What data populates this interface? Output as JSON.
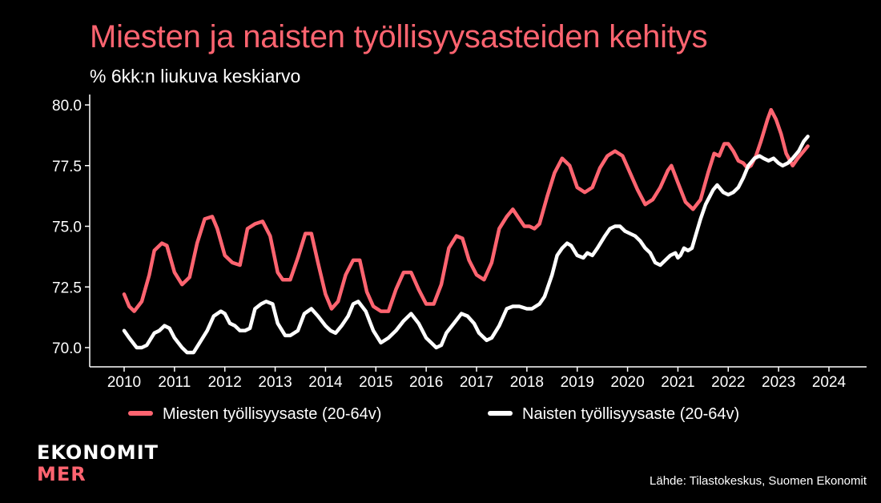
{
  "title": "Miesten ja naisten työllisyysasteiden kehitys",
  "subtitle": "% 6kk:n liukuva keskiarvo",
  "logo": {
    "line1": "EKONOMIT",
    "line2": "MER"
  },
  "source": "Lähde: Tilastokeskus, Suomen Ekonomit",
  "colors": {
    "background": "#000000",
    "men": "#ff6470",
    "women": "#ffffff",
    "title": "#ff6470"
  },
  "chart_data": {
    "type": "line",
    "xlabel": "",
    "ylabel": "",
    "xlim": [
      2009.75,
      2024.75
    ],
    "ylim": [
      69.3,
      80.3
    ],
    "x_ticks": [
      "2010",
      "2011",
      "2012",
      "2013",
      "2014",
      "2015",
      "2016",
      "2017",
      "2018",
      "2019",
      "2020",
      "2021",
      "2022",
      "2023",
      "2024"
    ],
    "y_ticks": [
      "70.0",
      "72.5",
      "75.0",
      "77.5",
      "80.0"
    ],
    "grid": false,
    "legend": "bottom",
    "series": [
      {
        "name": "Miesten työllisyysaste (20-64v)",
        "color": "#ff6470",
        "points": [
          [
            2010.0,
            72.2
          ],
          [
            2010.1,
            71.7
          ],
          [
            2010.2,
            71.5
          ],
          [
            2010.35,
            71.9
          ],
          [
            2010.5,
            73.0
          ],
          [
            2010.6,
            74.0
          ],
          [
            2010.75,
            74.3
          ],
          [
            2010.85,
            74.2
          ],
          [
            2011.0,
            73.1
          ],
          [
            2011.15,
            72.6
          ],
          [
            2011.3,
            72.9
          ],
          [
            2011.45,
            74.3
          ],
          [
            2011.6,
            75.3
          ],
          [
            2011.75,
            75.4
          ],
          [
            2011.85,
            74.9
          ],
          [
            2012.0,
            73.8
          ],
          [
            2012.15,
            73.5
          ],
          [
            2012.3,
            73.4
          ],
          [
            2012.45,
            74.9
          ],
          [
            2012.6,
            75.1
          ],
          [
            2012.75,
            75.2
          ],
          [
            2012.9,
            74.6
          ],
          [
            2013.05,
            73.1
          ],
          [
            2013.15,
            72.8
          ],
          [
            2013.3,
            72.8
          ],
          [
            2013.45,
            73.7
          ],
          [
            2013.6,
            74.7
          ],
          [
            2013.72,
            74.7
          ],
          [
            2013.85,
            73.5
          ],
          [
            2014.0,
            72.2
          ],
          [
            2014.12,
            71.6
          ],
          [
            2014.25,
            71.9
          ],
          [
            2014.4,
            73.0
          ],
          [
            2014.55,
            73.6
          ],
          [
            2014.68,
            73.6
          ],
          [
            2014.82,
            72.3
          ],
          [
            2014.95,
            71.7
          ],
          [
            2015.1,
            71.5
          ],
          [
            2015.25,
            71.5
          ],
          [
            2015.4,
            72.4
          ],
          [
            2015.55,
            73.1
          ],
          [
            2015.7,
            73.1
          ],
          [
            2015.85,
            72.4
          ],
          [
            2016.0,
            71.8
          ],
          [
            2016.15,
            71.8
          ],
          [
            2016.3,
            72.6
          ],
          [
            2016.45,
            74.1
          ],
          [
            2016.6,
            74.6
          ],
          [
            2016.72,
            74.5
          ],
          [
            2016.85,
            73.6
          ],
          [
            2017.0,
            73.0
          ],
          [
            2017.15,
            72.8
          ],
          [
            2017.3,
            73.5
          ],
          [
            2017.45,
            74.9
          ],
          [
            2017.6,
            75.4
          ],
          [
            2017.72,
            75.7
          ],
          [
            2017.85,
            75.3
          ],
          [
            2017.95,
            75.0
          ],
          [
            2018.05,
            75.0
          ],
          [
            2018.15,
            74.9
          ],
          [
            2018.25,
            75.1
          ],
          [
            2018.4,
            76.2
          ],
          [
            2018.55,
            77.2
          ],
          [
            2018.7,
            77.8
          ],
          [
            2018.85,
            77.5
          ],
          [
            2019.0,
            76.6
          ],
          [
            2019.15,
            76.4
          ],
          [
            2019.3,
            76.6
          ],
          [
            2019.45,
            77.4
          ],
          [
            2019.6,
            77.9
          ],
          [
            2019.75,
            78.1
          ],
          [
            2019.9,
            77.9
          ],
          [
            2020.05,
            77.2
          ],
          [
            2020.2,
            76.5
          ],
          [
            2020.35,
            75.9
          ],
          [
            2020.5,
            76.1
          ],
          [
            2020.65,
            76.6
          ],
          [
            2020.8,
            77.3
          ],
          [
            2020.87,
            77.5
          ],
          [
            2021.0,
            76.8
          ],
          [
            2021.15,
            76.0
          ],
          [
            2021.3,
            75.7
          ],
          [
            2021.45,
            76.1
          ],
          [
            2021.6,
            77.2
          ],
          [
            2021.72,
            78.0
          ],
          [
            2021.82,
            77.9
          ],
          [
            2021.92,
            78.4
          ],
          [
            2022.0,
            78.4
          ],
          [
            2022.1,
            78.1
          ],
          [
            2022.2,
            77.7
          ],
          [
            2022.3,
            77.6
          ],
          [
            2022.38,
            77.4
          ],
          [
            2022.45,
            77.5
          ],
          [
            2022.55,
            77.9
          ],
          [
            2022.65,
            78.5
          ],
          [
            2022.78,
            79.4
          ],
          [
            2022.85,
            79.8
          ],
          [
            2022.95,
            79.4
          ],
          [
            2023.05,
            78.8
          ],
          [
            2023.15,
            78.0
          ],
          [
            2023.28,
            77.5
          ],
          [
            2023.38,
            77.8
          ],
          [
            2023.5,
            78.1
          ],
          [
            2023.58,
            78.3
          ]
        ]
      },
      {
        "name": "Naisten työllisyysaste (20-64v)",
        "color": "#ffffff",
        "points": [
          [
            2010.0,
            70.7
          ],
          [
            2010.1,
            70.4
          ],
          [
            2010.25,
            70.0
          ],
          [
            2010.35,
            70.0
          ],
          [
            2010.45,
            70.1
          ],
          [
            2010.6,
            70.6
          ],
          [
            2010.7,
            70.7
          ],
          [
            2010.8,
            70.9
          ],
          [
            2010.9,
            70.8
          ],
          [
            2011.0,
            70.4
          ],
          [
            2011.15,
            70.0
          ],
          [
            2011.25,
            69.8
          ],
          [
            2011.38,
            69.8
          ],
          [
            2011.5,
            70.2
          ],
          [
            2011.65,
            70.7
          ],
          [
            2011.78,
            71.3
          ],
          [
            2011.92,
            71.5
          ],
          [
            2012.0,
            71.4
          ],
          [
            2012.1,
            71.0
          ],
          [
            2012.2,
            70.9
          ],
          [
            2012.3,
            70.7
          ],
          [
            2012.4,
            70.7
          ],
          [
            2012.5,
            70.8
          ],
          [
            2012.6,
            71.6
          ],
          [
            2012.72,
            71.8
          ],
          [
            2012.82,
            71.9
          ],
          [
            2012.95,
            71.8
          ],
          [
            2013.05,
            71.0
          ],
          [
            2013.2,
            70.5
          ],
          [
            2013.3,
            70.5
          ],
          [
            2013.45,
            70.7
          ],
          [
            2013.58,
            71.4
          ],
          [
            2013.72,
            71.6
          ],
          [
            2013.85,
            71.3
          ],
          [
            2014.0,
            70.9
          ],
          [
            2014.1,
            70.7
          ],
          [
            2014.2,
            70.6
          ],
          [
            2014.32,
            70.9
          ],
          [
            2014.45,
            71.3
          ],
          [
            2014.55,
            71.8
          ],
          [
            2014.65,
            71.9
          ],
          [
            2014.8,
            71.5
          ],
          [
            2014.95,
            70.7
          ],
          [
            2015.1,
            70.2
          ],
          [
            2015.25,
            70.4
          ],
          [
            2015.4,
            70.7
          ],
          [
            2015.55,
            71.1
          ],
          [
            2015.7,
            71.4
          ],
          [
            2015.85,
            71.0
          ],
          [
            2016.0,
            70.4
          ],
          [
            2016.1,
            70.2
          ],
          [
            2016.2,
            70.0
          ],
          [
            2016.3,
            70.1
          ],
          [
            2016.4,
            70.6
          ],
          [
            2016.55,
            71.0
          ],
          [
            2016.7,
            71.4
          ],
          [
            2016.82,
            71.3
          ],
          [
            2016.95,
            71.0
          ],
          [
            2017.05,
            70.6
          ],
          [
            2017.2,
            70.3
          ],
          [
            2017.3,
            70.4
          ],
          [
            2017.45,
            70.9
          ],
          [
            2017.6,
            71.6
          ],
          [
            2017.72,
            71.7
          ],
          [
            2017.85,
            71.7
          ],
          [
            2018.0,
            71.6
          ],
          [
            2018.1,
            71.6
          ],
          [
            2018.25,
            71.8
          ],
          [
            2018.35,
            72.1
          ],
          [
            2018.5,
            73.0
          ],
          [
            2018.6,
            73.8
          ],
          [
            2018.7,
            74.1
          ],
          [
            2018.8,
            74.3
          ],
          [
            2018.88,
            74.2
          ],
          [
            2019.0,
            73.8
          ],
          [
            2019.12,
            73.7
          ],
          [
            2019.2,
            73.9
          ],
          [
            2019.3,
            73.8
          ],
          [
            2019.4,
            74.1
          ],
          [
            2019.55,
            74.6
          ],
          [
            2019.65,
            74.9
          ],
          [
            2019.75,
            75.0
          ],
          [
            2019.85,
            75.0
          ],
          [
            2019.95,
            74.8
          ],
          [
            2020.05,
            74.7
          ],
          [
            2020.15,
            74.6
          ],
          [
            2020.25,
            74.4
          ],
          [
            2020.35,
            74.1
          ],
          [
            2020.45,
            73.9
          ],
          [
            2020.55,
            73.5
          ],
          [
            2020.65,
            73.4
          ],
          [
            2020.75,
            73.6
          ],
          [
            2020.85,
            73.8
          ],
          [
            2020.95,
            73.9
          ],
          [
            2021.0,
            73.7
          ],
          [
            2021.05,
            73.8
          ],
          [
            2021.12,
            74.1
          ],
          [
            2021.2,
            74.0
          ],
          [
            2021.28,
            74.1
          ],
          [
            2021.35,
            74.6
          ],
          [
            2021.45,
            75.3
          ],
          [
            2021.55,
            75.9
          ],
          [
            2021.7,
            76.5
          ],
          [
            2021.78,
            76.7
          ],
          [
            2021.9,
            76.4
          ],
          [
            2022.0,
            76.3
          ],
          [
            2022.1,
            76.4
          ],
          [
            2022.2,
            76.6
          ],
          [
            2022.3,
            77.0
          ],
          [
            2022.4,
            77.5
          ],
          [
            2022.52,
            77.8
          ],
          [
            2022.62,
            77.9
          ],
          [
            2022.7,
            77.8
          ],
          [
            2022.8,
            77.7
          ],
          [
            2022.9,
            77.8
          ],
          [
            2023.0,
            77.6
          ],
          [
            2023.08,
            77.5
          ],
          [
            2023.18,
            77.6
          ],
          [
            2023.28,
            77.8
          ],
          [
            2023.4,
            78.1
          ],
          [
            2023.5,
            78.5
          ],
          [
            2023.58,
            78.7
          ]
        ]
      }
    ]
  }
}
